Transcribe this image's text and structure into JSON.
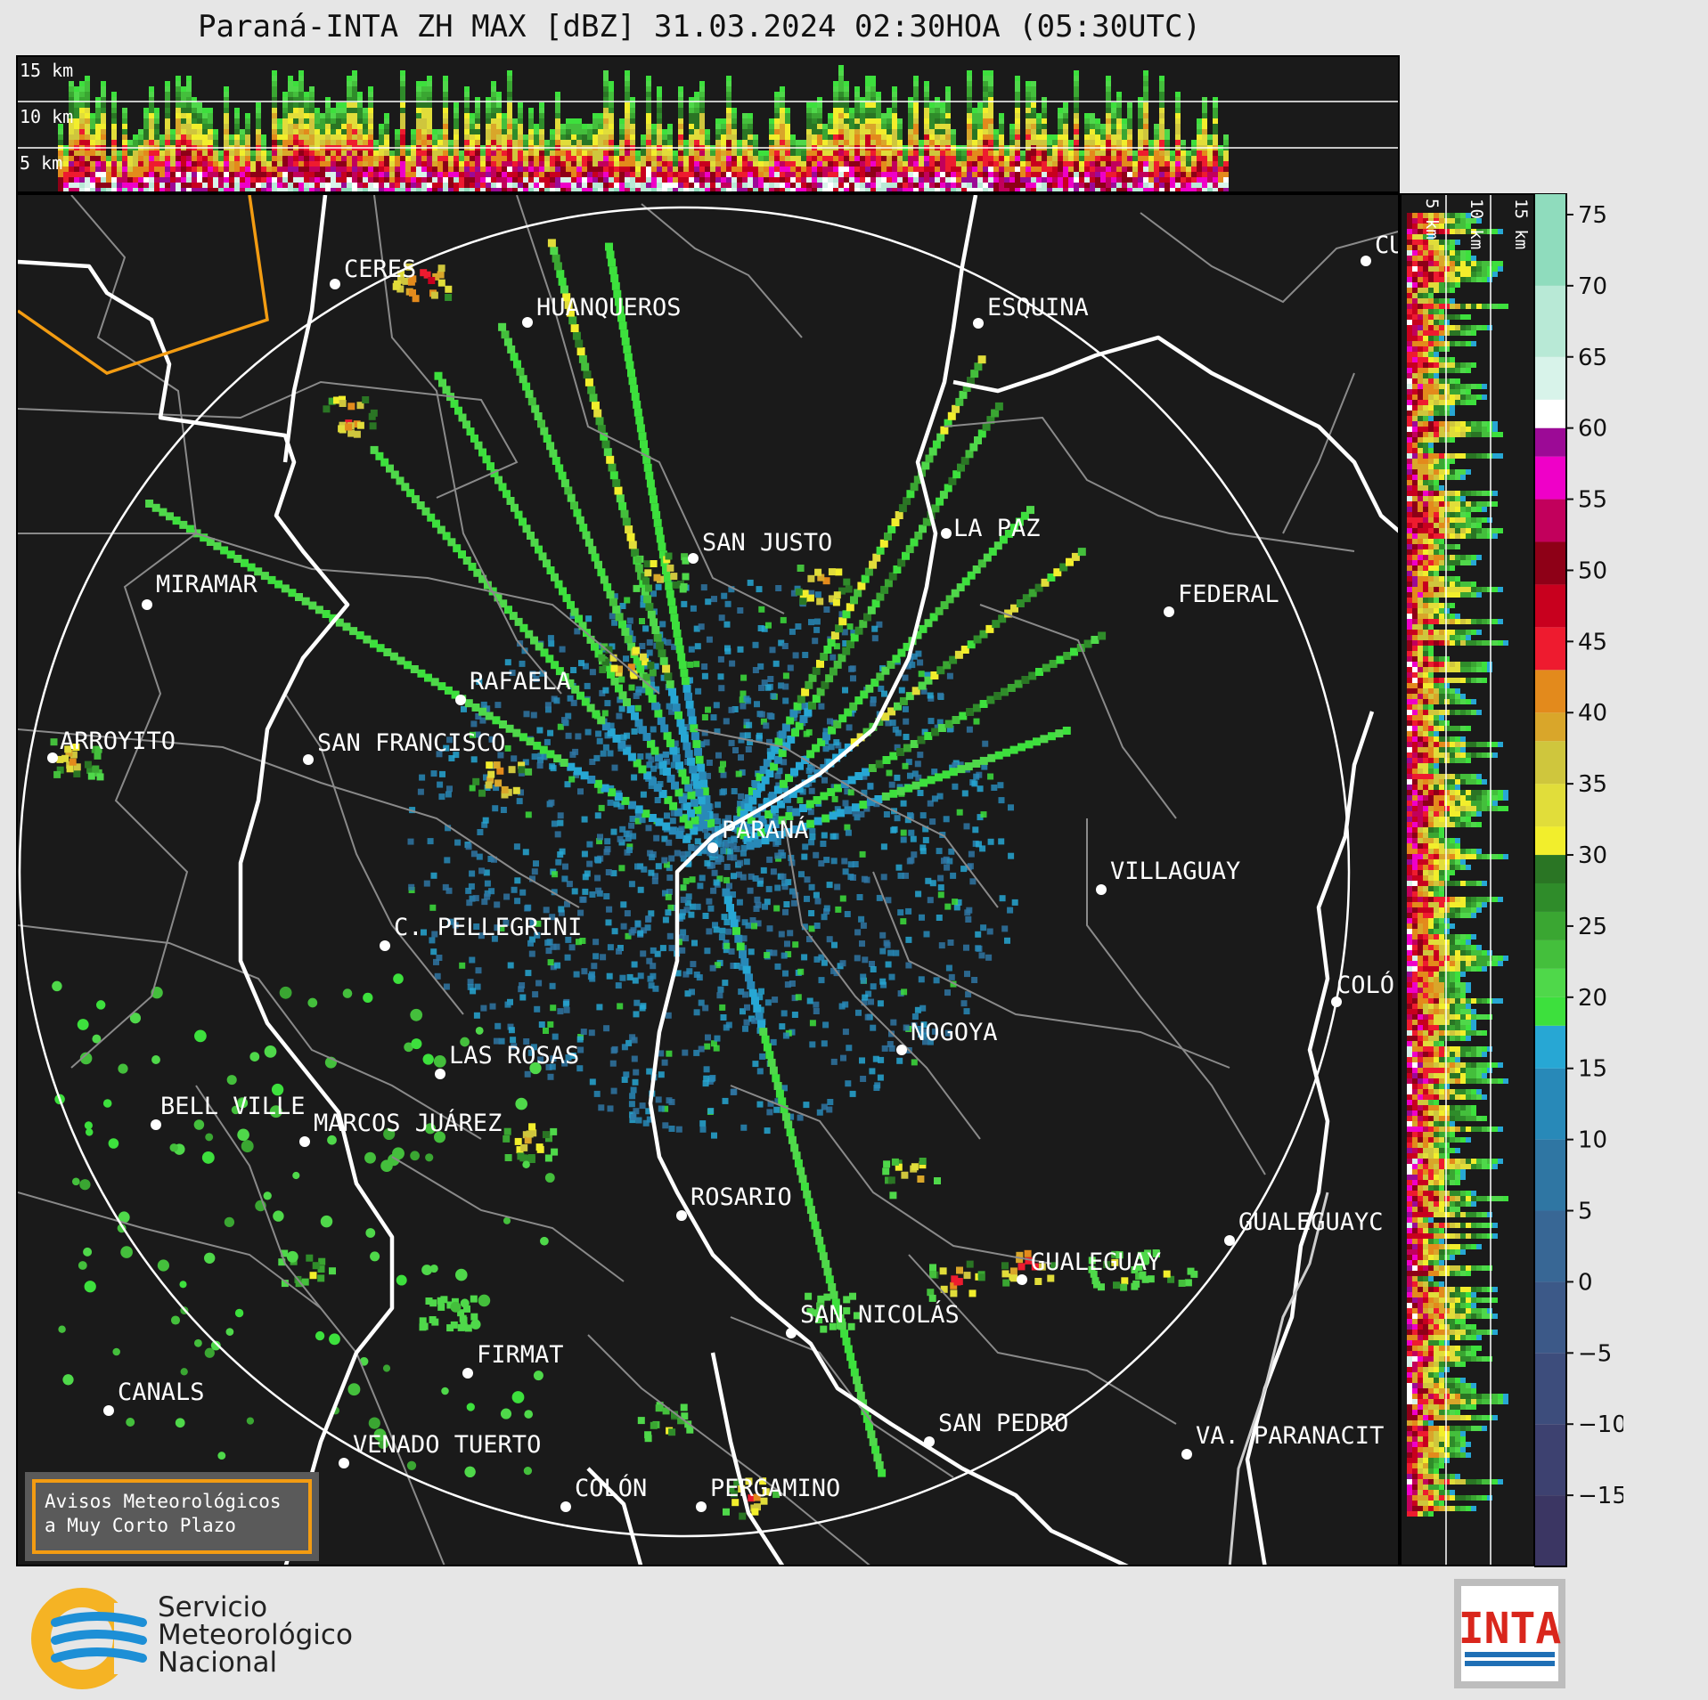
{
  "title": "Paraná-INTA ZH MAX [dBZ] 31.03.2024 02:30HOA (05:30UTC)",
  "height_labels": [
    "15 km",
    "10 km",
    "5 km"
  ],
  "cities": [
    {
      "name": "CERES"
    },
    {
      "name": "HUANQUEROS"
    },
    {
      "name": "ESQUINA"
    },
    {
      "name": "CU"
    },
    {
      "name": "SAN JUSTO"
    },
    {
      "name": "LA PAZ"
    },
    {
      "name": "MIRAMAR"
    },
    {
      "name": "FEDERAL"
    },
    {
      "name": "RAFAELA"
    },
    {
      "name": "ARROYITO"
    },
    {
      "name": "SAN FRANCISCO"
    },
    {
      "name": "PARANÁ"
    },
    {
      "name": "VILLAGUAY"
    },
    {
      "name": "C. PELLEGRINI"
    },
    {
      "name": "COLÓ"
    },
    {
      "name": "NOGOYA"
    },
    {
      "name": "LAS ROSAS"
    },
    {
      "name": "BELL VILLE"
    },
    {
      "name": "MARCOS JUÁREZ"
    },
    {
      "name": "ROSARIO"
    },
    {
      "name": "GUALEGUAYC"
    },
    {
      "name": "GUALEGUAY"
    },
    {
      "name": "SAN NICOLÁS"
    },
    {
      "name": "FIRMAT"
    },
    {
      "name": "CANALS"
    },
    {
      "name": "SAN PEDRO"
    },
    {
      "name": "VENADO TUERTO"
    },
    {
      "name": "VA. PARANACIT"
    },
    {
      "name": "COLÓN"
    },
    {
      "name": "PERGAMINO"
    }
  ],
  "colorbar": {
    "ticks": [
      "75",
      "70",
      "65",
      "60",
      "55",
      "50",
      "45",
      "40",
      "35",
      "30",
      "25",
      "20",
      "15",
      "10",
      "5",
      "0",
      "−5",
      "−10",
      "−15"
    ],
    "min": -20,
    "max": 76.5,
    "stops": [
      {
        "from": -20,
        "to": -15,
        "color": "#3b3663"
      },
      {
        "from": -15,
        "to": -10,
        "color": "#3d4170"
      },
      {
        "from": -10,
        "to": -5,
        "color": "#3d4d7c"
      },
      {
        "from": -5,
        "to": 0,
        "color": "#3c5988"
      },
      {
        "from": 0,
        "to": 5,
        "color": "#386795"
      },
      {
        "from": 5,
        "to": 10,
        "color": "#2f76a3"
      },
      {
        "from": 10,
        "to": 15,
        "color": "#2889b8"
      },
      {
        "from": 15,
        "to": 18,
        "color": "#27a7d4"
      },
      {
        "from": 18,
        "to": 20,
        "color": "#3de03d"
      },
      {
        "from": 20,
        "to": 22,
        "color": "#4fd84a"
      },
      {
        "from": 22,
        "to": 24,
        "color": "#44bf3c"
      },
      {
        "from": 24,
        "to": 26,
        "color": "#3aa632"
      },
      {
        "from": 26,
        "to": 28,
        "color": "#2f8c2a"
      },
      {
        "from": 28,
        "to": 30,
        "color": "#2a7524"
      },
      {
        "from": 30,
        "to": 32,
        "color": "#f2ee2c"
      },
      {
        "from": 32,
        "to": 35,
        "color": "#e1dd3a"
      },
      {
        "from": 35,
        "to": 38,
        "color": "#cfc63d"
      },
      {
        "from": 38,
        "to": 40,
        "color": "#d9a62a"
      },
      {
        "from": 40,
        "to": 43,
        "color": "#e38a1c"
      },
      {
        "from": 43,
        "to": 46,
        "color": "#ee1b2f"
      },
      {
        "from": 46,
        "to": 49,
        "color": "#c8001e"
      },
      {
        "from": 49,
        "to": 52,
        "color": "#8e0017"
      },
      {
        "from": 52,
        "to": 55,
        "color": "#c2005c"
      },
      {
        "from": 55,
        "to": 58,
        "color": "#ef00c8"
      },
      {
        "from": 58,
        "to": 60,
        "color": "#9c0a96"
      },
      {
        "from": 60,
        "to": 62,
        "color": "#ffffff"
      },
      {
        "from": 62,
        "to": 65,
        "color": "#d8f3ea"
      },
      {
        "from": 65,
        "to": 70,
        "color": "#b8e9d6"
      },
      {
        "from": 70,
        "to": 76.5,
        "color": "#8fdcbd"
      }
    ]
  },
  "avisos": {
    "line1": "Avisos Meteorológicos",
    "line2": "a Muy Corto Plazo"
  },
  "smn": {
    "line1": "Servicio",
    "line2": "Meteorológico",
    "line3": "Nacional"
  },
  "inta": {
    "label": "INTA"
  }
}
